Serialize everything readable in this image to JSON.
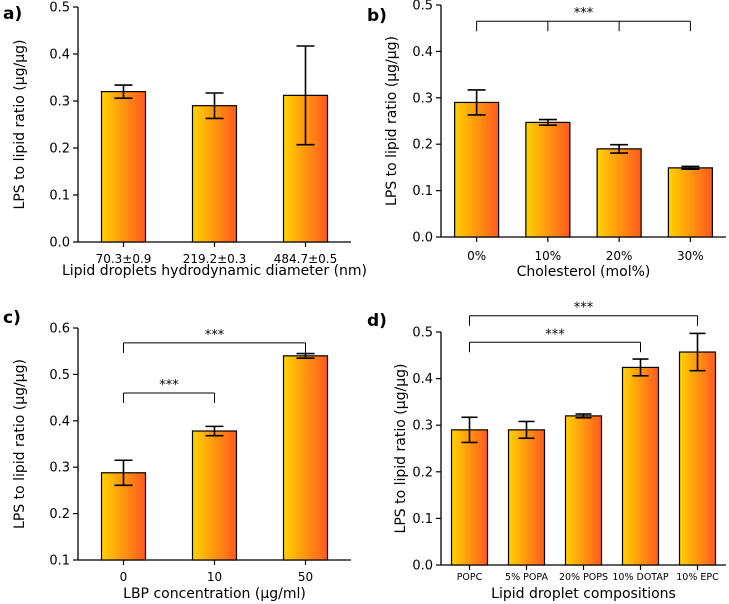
{
  "gradient": {
    "left": "#ffd200",
    "right": "#ff5a1e",
    "stroke": "#000000"
  },
  "chart_data": [
    {
      "panel": "a)",
      "type": "bar",
      "categories": [
        "70.3±0.9",
        "219.2±0.3",
        "484.7±0.5"
      ],
      "values": [
        0.32,
        0.29,
        0.312
      ],
      "errors": [
        0.014,
        0.027,
        0.105
      ],
      "ylim": [
        0,
        0.5
      ],
      "yticks": [
        "0.0",
        "0.1",
        "0.2",
        "0.3",
        "0.4",
        "0.5"
      ],
      "ylabel": "LPS to lipid ratio (µg/µg)",
      "xlabel": "Lipid droplets hydrodynamic diameter (nm)",
      "significance": []
    },
    {
      "panel": "b)",
      "type": "bar",
      "categories": [
        "0%",
        "10%",
        "20%",
        "30%"
      ],
      "values": [
        0.29,
        0.247,
        0.19,
        0.149
      ],
      "errors": [
        0.027,
        0.006,
        0.009,
        0.003
      ],
      "ylim": [
        0,
        0.5
      ],
      "yticks": [
        "0.0",
        "0.1",
        "0.2",
        "0.3",
        "0.4",
        "0.5"
      ],
      "ylabel": "LPS to lipid ratio (µg/µg)",
      "xlabel": "Cholesterol (mol%)",
      "significance": [
        {
          "label": "***",
          "bracket_y": 0.465,
          "from": 0,
          "to": 3,
          "ticks": [
            0,
            1,
            2,
            3
          ]
        }
      ]
    },
    {
      "panel": "c)",
      "type": "bar",
      "categories": [
        "0",
        "10",
        "50"
      ],
      "values": [
        0.288,
        0.378,
        0.54
      ],
      "errors": [
        0.027,
        0.01,
        0.005
      ],
      "ylim": [
        0.1,
        0.6
      ],
      "yticks": [
        "0.1",
        "0.2",
        "0.3",
        "0.4",
        "0.5",
        "0.6"
      ],
      "ylabel": "LPS to lipid ratio (µg/µg)",
      "xlabel": "LBP concentration (µg/ml)",
      "significance": [
        {
          "label": "***",
          "bracket_y": 0.568,
          "from": 0,
          "to": 2,
          "ticks": [
            0,
            2
          ]
        },
        {
          "label": "***",
          "bracket_y": 0.46,
          "from": 0,
          "to": 1,
          "ticks": [
            0,
            1
          ]
        }
      ]
    },
    {
      "panel": "d)",
      "type": "bar",
      "categories": [
        "POPC",
        "5% POPA",
        "20% POPS",
        "10% DOTAP",
        "10% EPC"
      ],
      "values": [
        0.29,
        0.29,
        0.32,
        0.424,
        0.457
      ],
      "errors": [
        0.027,
        0.018,
        0.004,
        0.018,
        0.04
      ],
      "ylim": [
        0,
        0.5
      ],
      "yticks": [
        "0.0",
        "0.1",
        "0.2",
        "0.3",
        "0.4",
        "0.5"
      ],
      "ylabel": "LPS to lipid ratio (µg/µg)",
      "xlabel": "Lipid droplet compositions",
      "significance": [
        {
          "label": "***",
          "bracket_y": 0.535,
          "from": 0,
          "to": 4,
          "ticks": [
            0,
            4
          ]
        },
        {
          "label": "***",
          "bracket_y": 0.478,
          "from": 0,
          "to": 3,
          "ticks": [
            0,
            3
          ]
        }
      ]
    }
  ]
}
